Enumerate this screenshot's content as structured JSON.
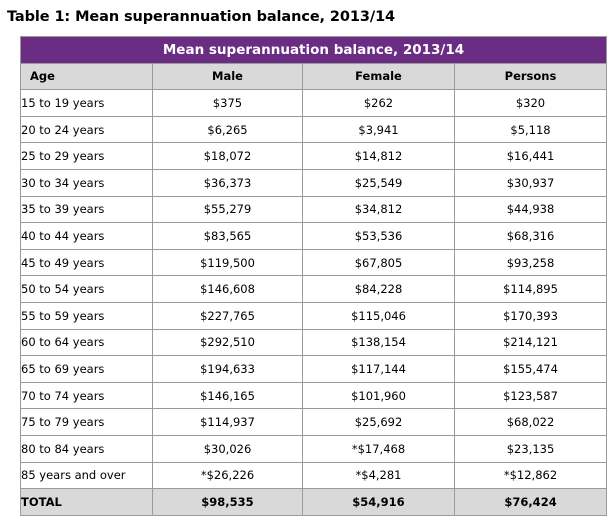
{
  "caption": "Table 1: Mean superannuation balance, 2013/14",
  "table": {
    "banner": "Mean superannuation balance, 2013/14",
    "columns": [
      "Age",
      "Male",
      "Female",
      "Persons"
    ],
    "rows": [
      [
        "15 to 19 years",
        "$375",
        "$262",
        "$320"
      ],
      [
        "20 to 24 years",
        "$6,265",
        "$3,941",
        "$5,118"
      ],
      [
        "25 to 29 years",
        "$18,072",
        "$14,812",
        "$16,441"
      ],
      [
        "30 to 34 years",
        "$36,373",
        "$25,549",
        "$30,937"
      ],
      [
        "35 to 39 years",
        "$55,279",
        "$34,812",
        "$44,938"
      ],
      [
        "40 to 44 years",
        "$83,565",
        "$53,536",
        "$68,316"
      ],
      [
        "45 to 49 years",
        "$119,500",
        "$67,805",
        "$93,258"
      ],
      [
        "50 to 54 years",
        "$146,608",
        "$84,228",
        "$114,895"
      ],
      [
        "55 to 59 years",
        "$227,765",
        "$115,046",
        "$170,393"
      ],
      [
        "60 to 64 years",
        "$292,510",
        "$138,154",
        "$214,121"
      ],
      [
        "65 to 69 years",
        "$194,633",
        "$117,144",
        "$155,474"
      ],
      [
        "70 to 74 years",
        "$146,165",
        "$101,960",
        "$123,587"
      ],
      [
        "75 to 79 years",
        "$114,937",
        "$25,692",
        "$68,022"
      ],
      [
        "80 to 84 years",
        "$30,026",
        "*$17,468",
        "$23,135"
      ],
      [
        "85 years and over",
        "*$26,226",
        "*$4,281",
        "*$12,862"
      ]
    ],
    "total": [
      "TOTAL",
      "$98,535",
      "$54,916",
      "$76,424"
    ]
  },
  "colors": {
    "banner_bg": "#6b2d84",
    "header_bg": "#d9d9d9",
    "border": "#9a9a9a"
  }
}
